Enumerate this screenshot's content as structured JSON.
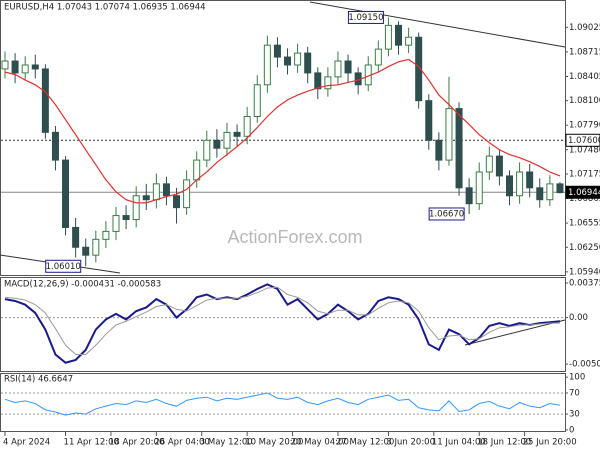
{
  "chart_data": [
    {
      "type": "candlestick",
      "header": "EURUSD,H4  1.07043 1.07074 1.06935 1.06944",
      "watermark": "ActionForex.com",
      "up_color": "#3a7d44",
      "down_color": "#2f4f4f",
      "open": [
        1.085,
        1.086,
        1.0845,
        1.0855,
        1.085,
        1.077,
        1.0735,
        1.065,
        1.0625,
        1.0615,
        1.0635,
        1.0645,
        1.0665,
        1.066,
        1.069,
        1.0685,
        1.0705,
        1.069,
        1.0675,
        1.071,
        1.0735,
        1.076,
        1.075,
        1.077,
        1.0765,
        1.079,
        1.083,
        1.088,
        1.0865,
        1.0855,
        1.087,
        1.0845,
        1.0825,
        1.084,
        1.086,
        1.0845,
        1.083,
        1.0855,
        1.0875,
        1.0905,
        1.088,
        1.089,
        1.081,
        1.076,
        1.0735,
        1.08,
        1.07,
        1.068,
        1.072,
        1.074,
        1.0715,
        1.069,
        1.072,
        1.07,
        1.0685,
        1.0705
      ],
      "high": [
        1.0872,
        1.087,
        1.0866,
        1.0868,
        1.0856,
        1.0778,
        1.074,
        1.0662,
        1.0636,
        1.0646,
        1.0658,
        1.0676,
        1.0678,
        1.0702,
        1.0705,
        1.0718,
        1.0714,
        1.07,
        1.0722,
        1.0746,
        1.0772,
        1.0774,
        1.0782,
        1.078,
        1.0802,
        1.0842,
        1.0892,
        1.089,
        1.0876,
        1.0882,
        1.0878,
        1.0852,
        1.0852,
        1.0872,
        1.0868,
        1.0852,
        1.0866,
        1.0886,
        1.0915,
        1.091,
        1.0902,
        1.0896,
        1.0818,
        1.077,
        1.084,
        1.0808,
        1.0712,
        1.0732,
        1.0752,
        1.0748,
        1.0722,
        1.0732,
        1.073,
        1.0712,
        1.0716,
        1.0707
      ],
      "low": [
        1.0838,
        1.0832,
        1.0836,
        1.0838,
        1.0762,
        1.0722,
        1.064,
        1.0612,
        1.0601,
        1.0606,
        1.0624,
        1.0634,
        1.0648,
        1.065,
        1.0672,
        1.0674,
        1.0678,
        1.0655,
        1.0666,
        1.07,
        1.0726,
        1.0738,
        1.074,
        1.0752,
        1.0755,
        1.0782,
        1.082,
        1.0852,
        1.0843,
        1.0845,
        1.0832,
        1.0812,
        1.0815,
        1.083,
        1.0833,
        1.0818,
        1.0822,
        1.0846,
        1.0866,
        1.0868,
        1.087,
        1.08,
        1.0748,
        1.0722,
        1.0728,
        1.069,
        1.0667,
        1.0672,
        1.071,
        1.0703,
        1.0678,
        1.068,
        1.0688,
        1.0675,
        1.0677,
        1.0693
      ],
      "close": [
        1.086,
        1.0845,
        1.0855,
        1.085,
        1.077,
        1.0735,
        1.065,
        1.0625,
        1.0615,
        1.0635,
        1.0645,
        1.0665,
        1.066,
        1.069,
        1.0685,
        1.0705,
        1.069,
        1.0675,
        1.071,
        1.0735,
        1.076,
        1.075,
        1.077,
        1.0765,
        1.079,
        1.083,
        1.088,
        1.0865,
        1.0855,
        1.087,
        1.0845,
        1.0825,
        1.084,
        1.086,
        1.0845,
        1.083,
        1.0855,
        1.0875,
        1.0905,
        1.088,
        1.089,
        1.081,
        1.076,
        1.0735,
        1.08,
        1.07,
        1.068,
        1.072,
        1.074,
        1.0715,
        1.069,
        1.072,
        1.07,
        1.0685,
        1.0705,
        1.0694
      ],
      "ma": {
        "color": "#e03030",
        "values": [
          1.0846,
          1.0843,
          1.0836,
          1.083,
          1.0821,
          1.0805,
          1.0786,
          1.0767,
          1.0748,
          1.0729,
          1.071,
          1.0695,
          1.0685,
          1.0681,
          1.0681,
          1.0685,
          1.0689,
          1.0692,
          1.0698,
          1.071,
          1.072,
          1.0732,
          1.0742,
          1.0752,
          1.0763,
          1.0776,
          1.079,
          1.0802,
          1.0811,
          1.0817,
          1.0822,
          1.0826,
          1.0829,
          1.083,
          1.0833,
          1.0836,
          1.0841,
          1.0846,
          1.0853,
          1.0859,
          1.0862,
          1.0853,
          1.0836,
          1.0817,
          1.0805,
          1.0792,
          1.078,
          1.0767,
          1.0757,
          1.0748,
          1.0742,
          1.0738,
          1.0733,
          1.0727,
          1.072,
          1.0715
        ]
      },
      "ylim": [
        1.059,
        1.0937
      ],
      "yticks": [
        1.09025,
        1.08715,
        1.08405,
        {
          "value": 1.081,
          "label": "1.08100"
        },
        {
          "value": 1.0779,
          "label": "1.07790"
        },
        {
          "value": 1.0748,
          "label": "1.07480"
        },
        1.07175,
        1.06865,
        1.06555,
        {
          "value": 1.0625,
          "label": "1.06250"
        },
        {
          "value": 1.0594,
          "label": "1.05940"
        }
      ],
      "hlines": [
        {
          "value": 1.076,
          "label": "1.07600",
          "style": "dashed"
        },
        {
          "value": 1.06944,
          "label": "1.06944",
          "style": "current"
        }
      ],
      "annotations": [
        {
          "index": 38,
          "value": 1.0915,
          "label": "1.09150"
        },
        {
          "index": 46,
          "value": 1.0667,
          "label": "1.06670"
        },
        {
          "index": 8,
          "value": 1.0601,
          "label": "1.06010"
        }
      ],
      "xticks": [
        {
          "value": 0,
          "label": "4 Apr 2024"
        },
        {
          "value": 6,
          "label": "11 Apr 12:00"
        },
        {
          "value": 10.5,
          "label": "18 Apr 20:00"
        },
        {
          "value": 15,
          "label": "26 Apr 04:00"
        },
        {
          "value": 19.5,
          "label": "3 May 12:00"
        },
        {
          "value": 24,
          "label": "10 May 20:00"
        },
        {
          "value": 28.5,
          "label": "20 May 04:00"
        },
        {
          "value": 33,
          "label": "27 May 12:00"
        },
        {
          "value": 38,
          "label": "3 Jun 20:00"
        },
        {
          "value": 42.5,
          "label": "11 Jun 04:00"
        },
        {
          "value": 47,
          "label": "18 Jun 12:00"
        },
        {
          "value": 51.5,
          "label": "25 Jun 20:00"
        }
      ]
    },
    {
      "type": "macd",
      "label": "MACD(12,26,9) -0.000431 -0.000583",
      "series": [
        {
          "color": "#1a1a8c",
          "values": [
            0.002,
            0.0018,
            0.0014,
            0.0005,
            -0.0013,
            -0.004,
            -0.0049,
            -0.0046,
            -0.0035,
            -0.0013,
            -0.0002,
            0.0004,
            -0.0002,
            0.0007,
            0.0011,
            0.002,
            0.0014,
            0.0,
            0.0009,
            0.0022,
            0.0025,
            0.002,
            0.0022,
            0.002,
            0.0025,
            0.0031,
            0.0036,
            0.0031,
            0.0014,
            0.002,
            0.0009,
            -0.0002,
            0.0004,
            0.0014,
            0.0007,
            -0.0002,
            0.0004,
            0.0018,
            0.0022,
            0.002,
            0.0014,
            -0.0002,
            -0.0029,
            -0.0035,
            -0.0013,
            -0.0018,
            -0.0029,
            -0.0022,
            -0.0009,
            -0.0006,
            -0.0009,
            -0.0006,
            -0.0008,
            -0.0006,
            -0.0005,
            -0.0004
          ]
        },
        {
          "color": "#9a9a9a",
          "values": [
            0.0022,
            0.0021,
            0.0019,
            0.0014,
            0.0005,
            -0.0012,
            -0.003,
            -0.004,
            -0.004,
            -0.003,
            -0.0018,
            -0.0008,
            -0.0004,
            0.0001,
            0.0006,
            0.0012,
            0.0014,
            0.0009,
            0.0007,
            0.0013,
            0.0019,
            0.0021,
            0.0021,
            0.0021,
            0.0023,
            0.0027,
            0.0032,
            0.0033,
            0.0025,
            0.0022,
            0.0016,
            0.0007,
            0.0004,
            0.0008,
            0.0008,
            0.0003,
            0.0003,
            0.001,
            0.0016,
            0.0018,
            0.0016,
            0.0007,
            -0.0011,
            -0.0024,
            -0.002,
            -0.0019,
            -0.0024,
            -0.0023,
            -0.0016,
            -0.0011,
            -0.001,
            -0.0008,
            -0.0008,
            -0.0007,
            -0.0006,
            -0.0006
          ]
        }
      ],
      "ylim": [
        -0.0059,
        0.0044
      ],
      "yticks": [
        0.00375,
        {
          "value": 0,
          "label": "0.00"
        },
        -0.00504
      ],
      "levels": [
        0
      ]
    },
    {
      "type": "line",
      "label": "RSI(14) 46.6647",
      "color": "#3399ff",
      "values": [
        58,
        52,
        55,
        50,
        38,
        34,
        28,
        32,
        30,
        40,
        45,
        50,
        48,
        55,
        52,
        58,
        50,
        45,
        56,
        60,
        62,
        55,
        60,
        58,
        62,
        66,
        70,
        60,
        58,
        62,
        52,
        48,
        55,
        60,
        52,
        48,
        58,
        62,
        66,
        56,
        58,
        42,
        38,
        36,
        55,
        35,
        38,
        50,
        54,
        45,
        40,
        52,
        45,
        42,
        50,
        46.6647
      ],
      "ylim": [
        -4,
        106
      ],
      "yticks": [
        100,
        70,
        30,
        0
      ],
      "levels": [
        70,
        30
      ]
    }
  ]
}
